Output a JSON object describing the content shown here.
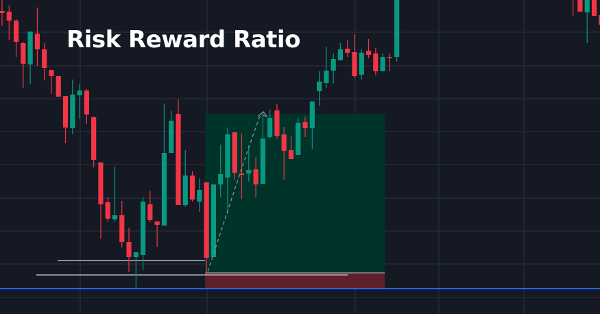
{
  "chart_data": {
    "type": "candlestick",
    "title": "Risk Reward Ratio",
    "grid": true,
    "candle_fields": [
      "t",
      "open",
      "high",
      "low",
      "close"
    ],
    "candles": [
      [
        0,
        442,
        458,
        420,
        439
      ],
      [
        1,
        441,
        450,
        400,
        428
      ],
      [
        2,
        428,
        430,
        375,
        397
      ],
      [
        3,
        395,
        397,
        330,
        365
      ],
      [
        4,
        364,
        412,
        335,
        412
      ],
      [
        5,
        409,
        447,
        362,
        386
      ],
      [
        6,
        386,
        395,
        341,
        359
      ],
      [
        7,
        356,
        356,
        321,
        347
      ],
      [
        8,
        347,
        347,
        317,
        317
      ],
      [
        9,
        318,
        318,
        249,
        272
      ],
      [
        10,
        271,
        342,
        262,
        320
      ],
      [
        11,
        319,
        335,
        285,
        326
      ],
      [
        12,
        326,
        328,
        277,
        291
      ],
      [
        13,
        287,
        288,
        214,
        225
      ],
      [
        14,
        221,
        221,
        110,
        160
      ],
      [
        15,
        163,
        171,
        134,
        139
      ],
      [
        16,
        138,
        215,
        134,
        144
      ],
      [
        17,
        144,
        165,
        97,
        105
      ],
      [
        18,
        105,
        126,
        61,
        83
      ],
      [
        19,
        83,
        90,
        36,
        90
      ],
      [
        20,
        86,
        171,
        64,
        164
      ],
      [
        21,
        160,
        180,
        134,
        137
      ],
      [
        22,
        135,
        135,
        98,
        130
      ],
      [
        23,
        129,
        307,
        129,
        235
      ],
      [
        24,
        235,
        297,
        235,
        282
      ],
      [
        25,
        292,
        313,
        159,
        159
      ],
      [
        26,
        159,
        239,
        156,
        202
      ],
      [
        27,
        202,
        208,
        164,
        167
      ],
      [
        28,
        164,
        198,
        149,
        181
      ],
      [
        29,
        192,
        192,
        60,
        82
      ],
      [
        30,
        83,
        189,
        83,
        189
      ],
      [
        31,
        189,
        247,
        170,
        204
      ],
      [
        32,
        199,
        272,
        146,
        262
      ],
      [
        33,
        265,
        265,
        196,
        206
      ],
      [
        34,
        205,
        263,
        168,
        203
      ],
      [
        35,
        205,
        246,
        193,
        210
      ],
      [
        36,
        211,
        229,
        170,
        189
      ],
      [
        37,
        190,
        295,
        190,
        256
      ],
      [
        38,
        258,
        298,
        256,
        286
      ],
      [
        39,
        297,
        306,
        255,
        260
      ],
      [
        40,
        262,
        273,
        196,
        238
      ],
      [
        41,
        239,
        260,
        226,
        226
      ],
      [
        42,
        232,
        286,
        232,
        279
      ],
      [
        43,
        280,
        288,
        258,
        271
      ],
      [
        44,
        271,
        310,
        241,
        310
      ],
      [
        45,
        325,
        354,
        304,
        339
      ],
      [
        46,
        337,
        390,
        330,
        355
      ],
      [
        47,
        355,
        380,
        336,
        372
      ],
      [
        48,
        370,
        395,
        370,
        386
      ],
      [
        49,
        387,
        399,
        375,
        381
      ],
      [
        50,
        382,
        408,
        344,
        347
      ],
      [
        51,
        349,
        386,
        342,
        381
      ],
      [
        52,
        384,
        401,
        373,
        378
      ],
      [
        53,
        380,
        388,
        348,
        354
      ],
      [
        54,
        354,
        380,
        354,
        375
      ],
      [
        55,
        375,
        380,
        354,
        374
      ],
      [
        56,
        375,
        470,
        368,
        470
      ],
      [
        81,
        480,
        480,
        435,
        470
      ],
      [
        82,
        470,
        480,
        441,
        441
      ],
      [
        83,
        440,
        470,
        395,
        470
      ],
      [
        84,
        470,
        475,
        435,
        435
      ],
      [
        85,
        436,
        440,
        422,
        422
      ]
    ],
    "position": {
      "type": "long",
      "entry": 60,
      "target": 292,
      "stop": 37,
      "start_t": 29,
      "end_t": 54
    },
    "levels": [
      {
        "price": 78,
        "color": "#d1d4dc"
      },
      {
        "price": 57,
        "color": "#d1d4dc"
      },
      {
        "price": 37,
        "color": "#2962ff"
      }
    ],
    "colors": {
      "background": "#151924",
      "grid": "#242a36",
      "up": "#089981",
      "down": "#f23645",
      "profit_zone": "#00332a",
      "loss_zone": "#5e2029",
      "title": "#ffffff"
    }
  }
}
